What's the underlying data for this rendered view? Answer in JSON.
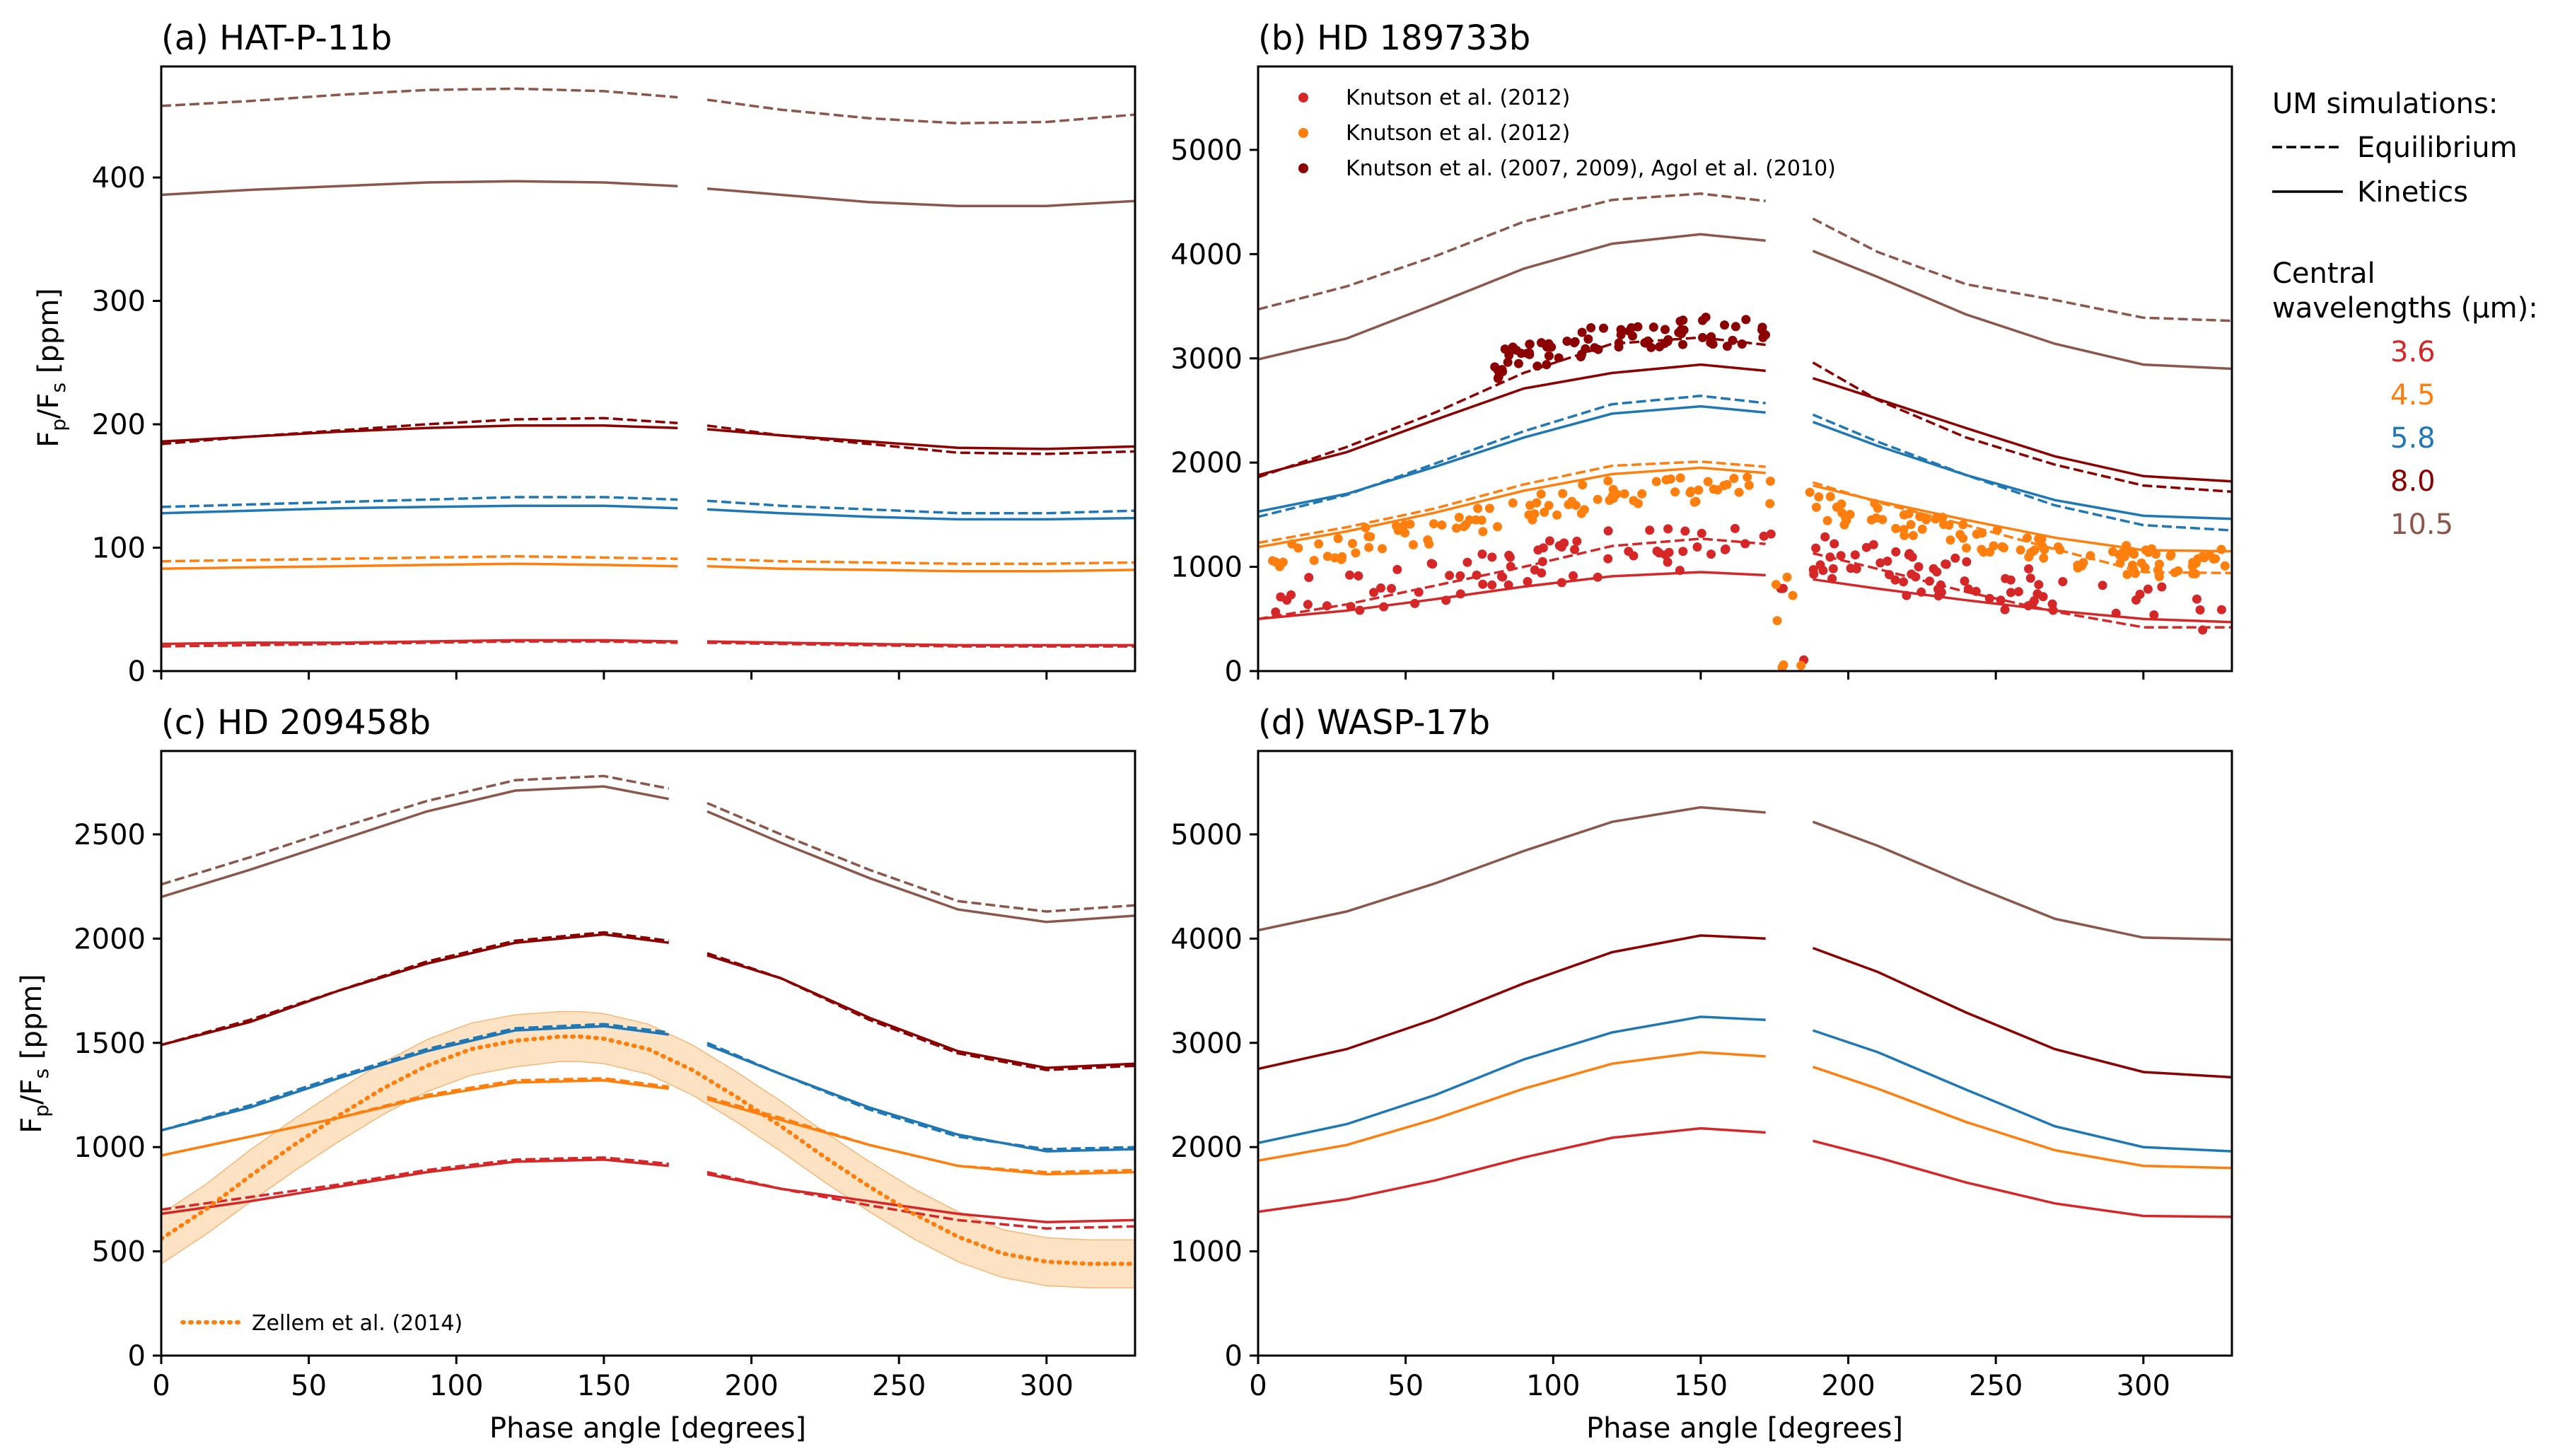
{
  "colors": {
    "3.6": "#d62728",
    "4.5": "#ff7f0e",
    "5.8": "#1f77b4",
    "8.0": "#8b0000",
    "10.5": "#8c564b",
    "shade": "#fcd9b0",
    "axis": "#000000"
  },
  "legend": {
    "um_title": "UM simulations:",
    "equilibrium": "Equilibrium",
    "kinetics": "Kinetics",
    "wl_title_line1": "Central",
    "wl_title_line2": "wavelengths (μm):",
    "wavelengths": [
      "3.6",
      "4.5",
      "5.8",
      "8.0",
      "10.5"
    ]
  },
  "chart_data": [
    {
      "id": "a",
      "type": "line",
      "title": "(a) HAT-P-11b",
      "xlabel": "",
      "ylabel": "Fp/Fs [ppm]",
      "xlim": [
        0,
        330
      ],
      "ylim": [
        0,
        490
      ],
      "yticks": [
        0,
        100,
        200,
        300,
        400
      ],
      "xticks": [
        0,
        50,
        100,
        150,
        200,
        250,
        300
      ],
      "show_xticklabels": false,
      "x": [
        0,
        30,
        60,
        90,
        120,
        150,
        175,
        185,
        210,
        240,
        270,
        300,
        330
      ],
      "series": [
        {
          "wl": "3.6",
          "kind": "equilibrium",
          "values": [
            20,
            21,
            22,
            23,
            24,
            24,
            23,
            23,
            22,
            21,
            20,
            20,
            20
          ]
        },
        {
          "wl": "3.6",
          "kind": "kinetics",
          "values": [
            22,
            23,
            23,
            24,
            25,
            25,
            24,
            24,
            23,
            22,
            21,
            21,
            21
          ]
        },
        {
          "wl": "4.5",
          "kind": "equilibrium",
          "values": [
            89,
            90,
            91,
            92,
            93,
            92,
            91,
            91,
            89,
            88,
            87,
            87,
            88
          ]
        },
        {
          "wl": "4.5",
          "kind": "kinetics",
          "values": [
            83,
            84,
            85,
            86,
            87,
            86,
            85,
            85,
            83,
            82,
            81,
            81,
            82
          ]
        },
        {
          "wl": "5.8",
          "kind": "equilibrium",
          "values": [
            133,
            135,
            137,
            139,
            141,
            141,
            139,
            138,
            134,
            131,
            128,
            128,
            130
          ]
        },
        {
          "wl": "5.8",
          "kind": "kinetics",
          "values": [
            128,
            130,
            132,
            133,
            134,
            134,
            132,
            131,
            128,
            125,
            123,
            123,
            124
          ]
        },
        {
          "wl": "8.0",
          "kind": "equilibrium",
          "values": [
            184,
            190,
            195,
            200,
            204,
            205,
            201,
            199,
            191,
            184,
            177,
            176,
            178
          ]
        },
        {
          "wl": "8.0",
          "kind": "kinetics",
          "values": [
            186,
            190,
            194,
            197,
            199,
            199,
            197,
            196,
            191,
            186,
            181,
            180,
            182
          ]
        },
        {
          "wl": "10.5",
          "kind": "equilibrium",
          "values": [
            458,
            462,
            467,
            471,
            472,
            470,
            465,
            463,
            455,
            448,
            444,
            445,
            451
          ]
        },
        {
          "wl": "10.5",
          "kind": "kinetics",
          "values": [
            386,
            390,
            393,
            396,
            397,
            396,
            393,
            391,
            386,
            380,
            377,
            377,
            381
          ]
        }
      ]
    },
    {
      "id": "b",
      "type": "line",
      "title": "(b) HD 189733b",
      "xlabel": "",
      "ylabel": "",
      "xlim": [
        0,
        330
      ],
      "ylim": [
        0,
        5800
      ],
      "yticks": [
        0,
        1000,
        2000,
        3000,
        4000,
        5000
      ],
      "xticks": [
        0,
        50,
        100,
        150,
        200,
        250,
        300
      ],
      "show_xticklabels": false,
      "x": [
        0,
        30,
        60,
        90,
        120,
        150,
        172,
        188,
        210,
        240,
        270,
        300,
        330
      ],
      "series": [
        {
          "wl": "3.6",
          "kind": "equilibrium",
          "values": [
            500,
            640,
            820,
            1000,
            1200,
            1270,
            1220,
            1130,
            980,
            760,
            570,
            420,
            420
          ]
        },
        {
          "wl": "3.6",
          "kind": "kinetics",
          "values": [
            500,
            580,
            690,
            810,
            910,
            950,
            920,
            880,
            790,
            680,
            580,
            500,
            470
          ]
        },
        {
          "wl": "4.5",
          "kind": "equilibrium",
          "values": [
            1230,
            1380,
            1560,
            1790,
            1970,
            2010,
            1960,
            1810,
            1620,
            1400,
            1170,
            950,
            940
          ]
        },
        {
          "wl": "4.5",
          "kind": "kinetics",
          "values": [
            1190,
            1340,
            1520,
            1730,
            1890,
            1950,
            1900,
            1780,
            1630,
            1450,
            1280,
            1160,
            1150
          ]
        },
        {
          "wl": "5.8",
          "kind": "equilibrium",
          "values": [
            1480,
            1690,
            1990,
            2300,
            2560,
            2640,
            2570,
            2460,
            2200,
            1880,
            1590,
            1400,
            1350
          ]
        },
        {
          "wl": "5.8",
          "kind": "kinetics",
          "values": [
            1530,
            1700,
            1960,
            2240,
            2470,
            2540,
            2480,
            2390,
            2160,
            1880,
            1640,
            1490,
            1460
          ]
        },
        {
          "wl": "8.0",
          "kind": "equilibrium",
          "values": [
            1860,
            2150,
            2480,
            2860,
            3140,
            3200,
            3130,
            2960,
            2600,
            2240,
            1980,
            1780,
            1720
          ]
        },
        {
          "wl": "8.0",
          "kind": "kinetics",
          "values": [
            1880,
            2100,
            2410,
            2710,
            2860,
            2940,
            2880,
            2810,
            2610,
            2330,
            2060,
            1870,
            1820
          ]
        },
        {
          "wl": "10.5",
          "kind": "equilibrium",
          "values": [
            3470,
            3690,
            3980,
            4310,
            4520,
            4580,
            4510,
            4340,
            4020,
            3710,
            3560,
            3390,
            3360
          ]
        },
        {
          "wl": "10.5",
          "kind": "kinetics",
          "values": [
            2990,
            3190,
            3520,
            3860,
            4100,
            4190,
            4130,
            4030,
            3780,
            3420,
            3140,
            2940,
            2900
          ]
        }
      ],
      "observations": [
        {
          "label": "Knutson et al. (2012)",
          "wl": "3.6"
        },
        {
          "label": "Knutson et al. (2012)",
          "wl": "4.5"
        },
        {
          "label": "Knutson et al. (2007, 2009), Agol et al. (2010)",
          "wl": "8.0"
        }
      ]
    },
    {
      "id": "c",
      "type": "line",
      "title": "(c) HD 209458b",
      "xlabel": "Phase angle [degrees]",
      "ylabel": "Fp/Fs [ppm]",
      "xlim": [
        0,
        330
      ],
      "ylim": [
        0,
        2900
      ],
      "yticks": [
        0,
        500,
        1000,
        1500,
        2000,
        2500
      ],
      "xticks": [
        0,
        50,
        100,
        150,
        200,
        250,
        300
      ],
      "show_xticklabels": true,
      "x": [
        0,
        30,
        60,
        90,
        120,
        150,
        172,
        185,
        210,
        240,
        270,
        300,
        330
      ],
      "series": [
        {
          "wl": "3.6",
          "kind": "equilibrium",
          "values": [
            700,
            760,
            820,
            890,
            940,
            950,
            920,
            880,
            800,
            720,
            650,
            610,
            620
          ]
        },
        {
          "wl": "3.6",
          "kind": "kinetics",
          "values": [
            680,
            740,
            810,
            880,
            930,
            940,
            910,
            870,
            800,
            740,
            680,
            640,
            650
          ]
        },
        {
          "wl": "4.5",
          "kind": "equilibrium",
          "values": [
            960,
            1050,
            1140,
            1250,
            1320,
            1330,
            1290,
            1240,
            1140,
            1010,
            910,
            880,
            890
          ]
        },
        {
          "wl": "4.5",
          "kind": "kinetics",
          "values": [
            960,
            1050,
            1140,
            1240,
            1310,
            1320,
            1280,
            1230,
            1130,
            1010,
            910,
            870,
            880
          ]
        },
        {
          "wl": "5.8",
          "kind": "equilibrium",
          "values": [
            1080,
            1200,
            1340,
            1470,
            1570,
            1590,
            1550,
            1500,
            1350,
            1180,
            1050,
            990,
            1000
          ]
        },
        {
          "wl": "5.8",
          "kind": "kinetics",
          "values": [
            1080,
            1190,
            1330,
            1460,
            1560,
            1580,
            1540,
            1490,
            1350,
            1190,
            1060,
            980,
            990
          ]
        },
        {
          "wl": "8.0",
          "kind": "equilibrium",
          "values": [
            1490,
            1610,
            1750,
            1890,
            1990,
            2030,
            1990,
            1930,
            1810,
            1610,
            1450,
            1370,
            1390
          ]
        },
        {
          "wl": "8.0",
          "kind": "kinetics",
          "values": [
            1490,
            1600,
            1750,
            1880,
            1980,
            2020,
            1980,
            1920,
            1810,
            1620,
            1460,
            1380,
            1400
          ]
        },
        {
          "wl": "10.5",
          "kind": "equilibrium",
          "values": [
            2260,
            2390,
            2530,
            2660,
            2760,
            2780,
            2720,
            2650,
            2500,
            2330,
            2180,
            2130,
            2160
          ]
        },
        {
          "wl": "10.5",
          "kind": "kinetics",
          "values": [
            2200,
            2330,
            2470,
            2610,
            2710,
            2730,
            2670,
            2610,
            2460,
            2290,
            2140,
            2080,
            2110
          ]
        }
      ],
      "zellem": {
        "label": "Zellem et al. (2014)",
        "wl": "4.5",
        "x": [
          0,
          15,
          30,
          45,
          60,
          75,
          90,
          105,
          120,
          135,
          142,
          150,
          165,
          180,
          195,
          210,
          225,
          240,
          255,
          270,
          285,
          300,
          315,
          330
        ],
        "values": [
          560,
          700,
          860,
          1010,
          1150,
          1280,
          1390,
          1470,
          1510,
          1530,
          1530,
          1520,
          1470,
          1370,
          1240,
          1100,
          950,
          810,
          680,
          570,
          490,
          450,
          440,
          440
        ],
        "band_halfwidth": [
          120,
          120,
          125,
          125,
          125,
          125,
          125,
          125,
          125,
          120,
          120,
          120,
          120,
          120,
          120,
          120,
          120,
          120,
          120,
          120,
          115,
          115,
          115,
          115
        ]
      }
    },
    {
      "id": "d",
      "type": "line",
      "title": "(d) WASP-17b",
      "xlabel": "Phase angle [degrees]",
      "ylabel": "",
      "xlim": [
        0,
        330
      ],
      "ylim": [
        0,
        5800
      ],
      "yticks": [
        0,
        1000,
        2000,
        3000,
        4000,
        5000
      ],
      "xticks": [
        0,
        50,
        100,
        150,
        200,
        250,
        300
      ],
      "show_xticklabels": true,
      "x": [
        0,
        30,
        60,
        90,
        120,
        150,
        172,
        188,
        210,
        240,
        270,
        300,
        330
      ],
      "series": [
        {
          "wl": "3.6",
          "kind": "kinetics",
          "values": [
            1380,
            1500,
            1680,
            1900,
            2090,
            2180,
            2140,
            2060,
            1900,
            1660,
            1460,
            1340,
            1330
          ]
        },
        {
          "wl": "4.5",
          "kind": "kinetics",
          "values": [
            1870,
            2020,
            2270,
            2560,
            2800,
            2910,
            2870,
            2770,
            2560,
            2240,
            1970,
            1820,
            1800
          ]
        },
        {
          "wl": "5.8",
          "kind": "kinetics",
          "values": [
            2040,
            2220,
            2500,
            2840,
            3100,
            3250,
            3220,
            3120,
            2910,
            2550,
            2200,
            2000,
            1960
          ]
        },
        {
          "wl": "8.0",
          "kind": "kinetics",
          "values": [
            2750,
            2940,
            3230,
            3570,
            3870,
            4030,
            4000,
            3910,
            3680,
            3290,
            2940,
            2720,
            2670
          ]
        },
        {
          "wl": "10.5",
          "kind": "kinetics",
          "values": [
            4080,
            4260,
            4530,
            4840,
            5120,
            5260,
            5210,
            5120,
            4890,
            4530,
            4190,
            4010,
            3990
          ]
        }
      ]
    }
  ]
}
